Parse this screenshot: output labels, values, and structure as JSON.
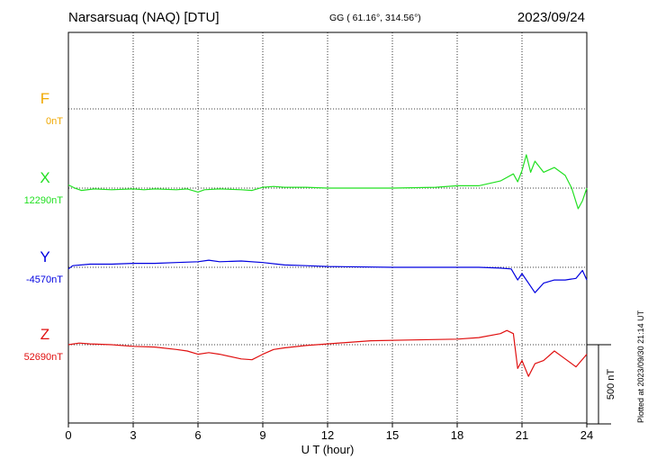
{
  "header": {
    "station": "Narsarsuaq (NAQ)  [DTU]",
    "coords": "GG ( 61.16°, 314.56°)",
    "date": "2023/09/24"
  },
  "footer": {
    "plotted": "Plotted at 2023/09/30 21:14 UT"
  },
  "chart_data": {
    "type": "line",
    "xlabel": "U T (hour)",
    "xlim": [
      0,
      24
    ],
    "xticks": [
      "0",
      "3",
      "6",
      "9",
      "12",
      "15",
      "18",
      "21",
      "24"
    ],
    "scale_bar": "500 nT",
    "scale_bar_nT": 500,
    "series": [
      {
        "name": "F",
        "baseline": "0nT",
        "color": "#f0a800",
        "values": []
      },
      {
        "name": "X",
        "baseline": "12290nT",
        "color": "#22e022",
        "values": [
          [
            0,
            20
          ],
          [
            0.3,
            0
          ],
          [
            0.6,
            -15
          ],
          [
            1.2,
            -5
          ],
          [
            2,
            -10
          ],
          [
            3,
            -5
          ],
          [
            3.5,
            -10
          ],
          [
            4,
            -5
          ],
          [
            5,
            -10
          ],
          [
            5.5,
            -5
          ],
          [
            6,
            -25
          ],
          [
            6.3,
            -10
          ],
          [
            7,
            -5
          ],
          [
            8,
            -10
          ],
          [
            8.5,
            -15
          ],
          [
            9,
            5
          ],
          [
            9.5,
            10
          ],
          [
            10,
            5
          ],
          [
            11,
            5
          ],
          [
            12,
            0
          ],
          [
            15,
            0
          ],
          [
            17,
            5
          ],
          [
            18,
            15
          ],
          [
            19,
            15
          ],
          [
            20,
            45
          ],
          [
            20.6,
            90
          ],
          [
            20.8,
            40
          ],
          [
            21,
            110
          ],
          [
            21.2,
            210
          ],
          [
            21.4,
            100
          ],
          [
            21.6,
            170
          ],
          [
            22,
            100
          ],
          [
            22.5,
            130
          ],
          [
            23,
            80
          ],
          [
            23.3,
            0
          ],
          [
            23.6,
            -130
          ],
          [
            23.8,
            -80
          ],
          [
            24,
            0
          ]
        ]
      },
      {
        "name": "Y",
        "baseline": "-4570nT",
        "color": "#0000e0",
        "values": [
          [
            0,
            -10
          ],
          [
            0.2,
            10
          ],
          [
            1,
            20
          ],
          [
            2,
            20
          ],
          [
            3,
            25
          ],
          [
            4,
            25
          ],
          [
            5,
            30
          ],
          [
            6,
            35
          ],
          [
            6.5,
            45
          ],
          [
            7,
            35
          ],
          [
            8,
            40
          ],
          [
            9,
            30
          ],
          [
            10,
            15
          ],
          [
            11,
            10
          ],
          [
            12,
            5
          ],
          [
            15,
            0
          ],
          [
            18,
            0
          ],
          [
            19,
            0
          ],
          [
            20,
            -5
          ],
          [
            20.5,
            -10
          ],
          [
            20.8,
            -80
          ],
          [
            21,
            -40
          ],
          [
            21.3,
            -100
          ],
          [
            21.6,
            -160
          ],
          [
            22,
            -100
          ],
          [
            22.5,
            -80
          ],
          [
            23,
            -80
          ],
          [
            23.5,
            -70
          ],
          [
            23.8,
            -20
          ],
          [
            24,
            -80
          ]
        ]
      },
      {
        "name": "Z",
        "baseline": "52690nT",
        "color": "#e01010",
        "values": [
          [
            0,
            0
          ],
          [
            0.5,
            10
          ],
          [
            1,
            5
          ],
          [
            2,
            0
          ],
          [
            3,
            -10
          ],
          [
            4,
            -15
          ],
          [
            5,
            -30
          ],
          [
            5.5,
            -40
          ],
          [
            6,
            -60
          ],
          [
            6.5,
            -50
          ],
          [
            7,
            -60
          ],
          [
            8,
            -90
          ],
          [
            8.5,
            -95
          ],
          [
            9,
            -60
          ],
          [
            9.5,
            -30
          ],
          [
            10,
            -20
          ],
          [
            11,
            -5
          ],
          [
            12,
            5
          ],
          [
            14,
            25
          ],
          [
            16,
            30
          ],
          [
            18,
            35
          ],
          [
            19,
            45
          ],
          [
            20,
            70
          ],
          [
            20.3,
            90
          ],
          [
            20.6,
            70
          ],
          [
            20.8,
            -150
          ],
          [
            21,
            -100
          ],
          [
            21.3,
            -200
          ],
          [
            21.6,
            -120
          ],
          [
            22,
            -100
          ],
          [
            22.5,
            -40
          ],
          [
            23,
            -90
          ],
          [
            23.5,
            -140
          ],
          [
            24,
            -60
          ]
        ]
      }
    ]
  }
}
